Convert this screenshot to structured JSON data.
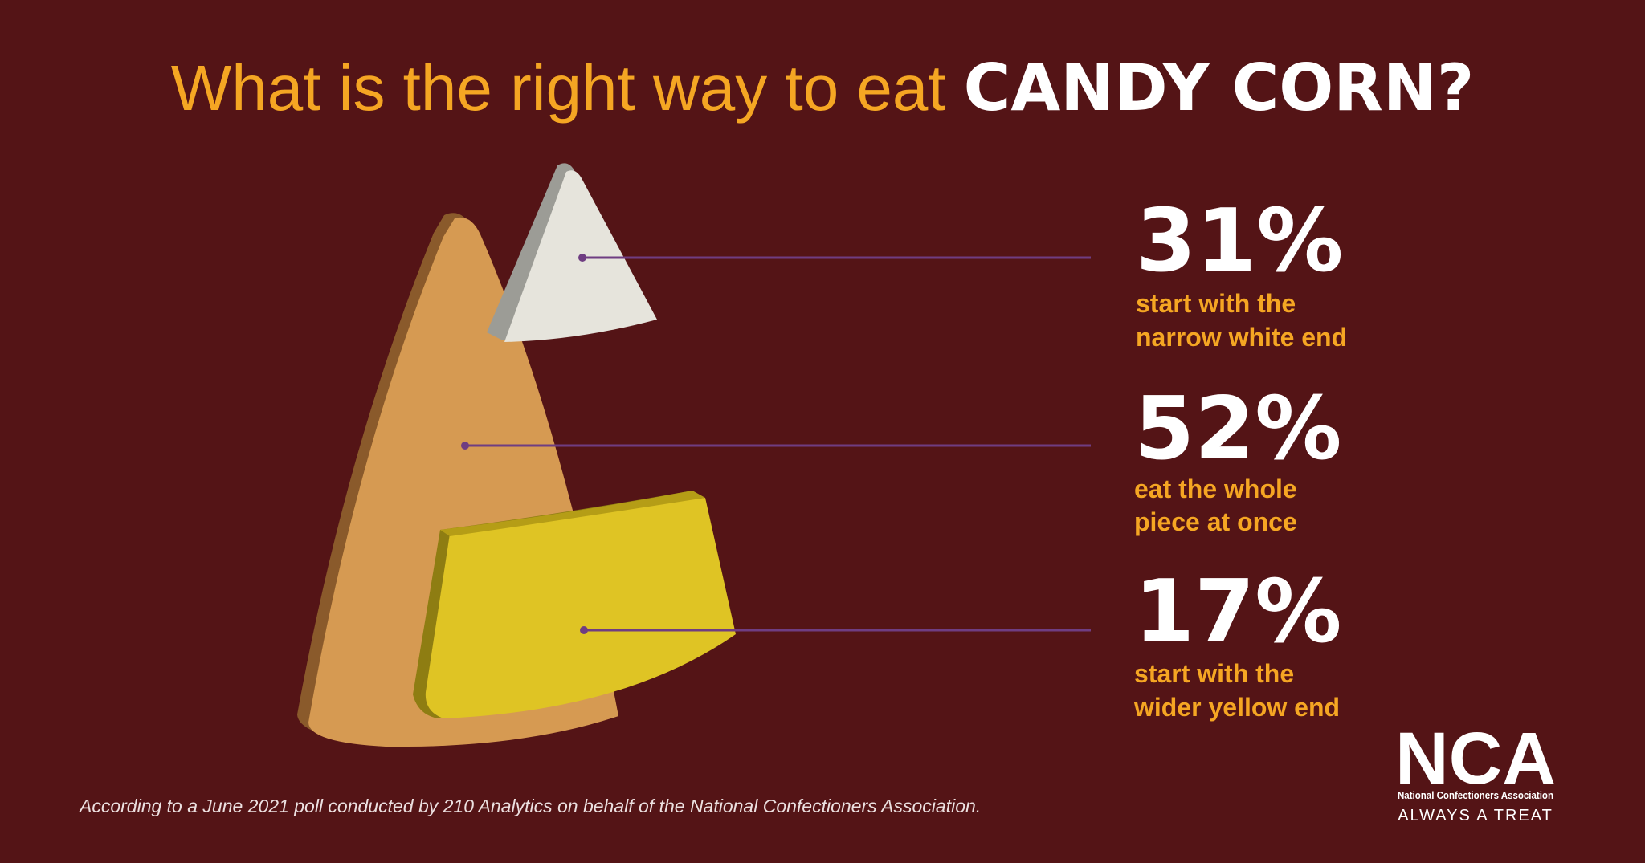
{
  "title": {
    "lead": "What is the right way to eat",
    "emphasis": "CANDY CORN?"
  },
  "stats": [
    {
      "value": "31%",
      "description": [
        "start with the",
        "narrow white end"
      ]
    },
    {
      "value": "52%",
      "description": [
        "eat the whole",
        "piece at once"
      ]
    },
    {
      "value": "17%",
      "description": [
        "start with the",
        "wider yellow end"
      ]
    }
  ],
  "footnote": "According to a June 2021 poll conducted by 210 Analytics on behalf of the National Confectioners Association.",
  "logo": {
    "mark": "NCA",
    "name": "National Confectioners Association",
    "tagline": "ALWAYS A TREAT"
  }
}
